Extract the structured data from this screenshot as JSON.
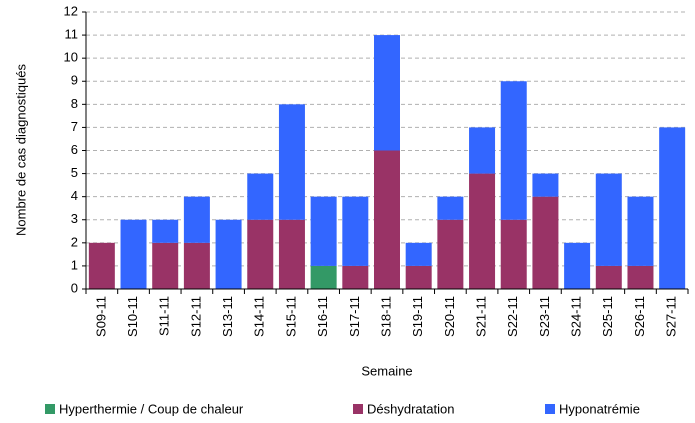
{
  "chart_data": {
    "type": "stacked_bar",
    "x_label": "Semaine",
    "y_label": "Nombre de cas diagnostiqués",
    "categories": [
      "S09-11",
      "S10-11",
      "S11-11",
      "S12-11",
      "S13-11",
      "S14-11",
      "S15-11",
      "S16-11",
      "S17-11",
      "S18-11",
      "S19-11",
      "S20-11",
      "S21-11",
      "S22-11",
      "S23-11",
      "S24-11",
      "S25-11",
      "S26-11",
      "S27-11"
    ],
    "series": [
      {
        "name": "Hyperthermie / Coup de chaleur",
        "color": "#339966",
        "values": [
          0,
          0,
          0,
          0,
          0,
          0,
          0,
          1,
          0,
          0,
          0,
          0,
          0,
          0,
          0,
          0,
          0,
          0,
          0
        ]
      },
      {
        "name": "Déshydratation",
        "color": "#993366",
        "values": [
          2,
          0,
          2,
          2,
          0,
          3,
          3,
          0,
          1,
          6,
          1,
          3,
          5,
          3,
          4,
          0,
          1,
          1,
          0
        ]
      },
      {
        "name": "Hyponatrémie",
        "color": "#3366ff",
        "values": [
          0,
          3,
          1,
          2,
          3,
          2,
          5,
          3,
          3,
          5,
          1,
          1,
          2,
          6,
          1,
          2,
          4,
          3,
          7
        ]
      }
    ],
    "ylim": [
      0,
      12
    ],
    "yticks": [
      0,
      1,
      2,
      3,
      4,
      5,
      6,
      7,
      8,
      9,
      10,
      11,
      12
    ],
    "grid": true,
    "legend": "bottom"
  }
}
